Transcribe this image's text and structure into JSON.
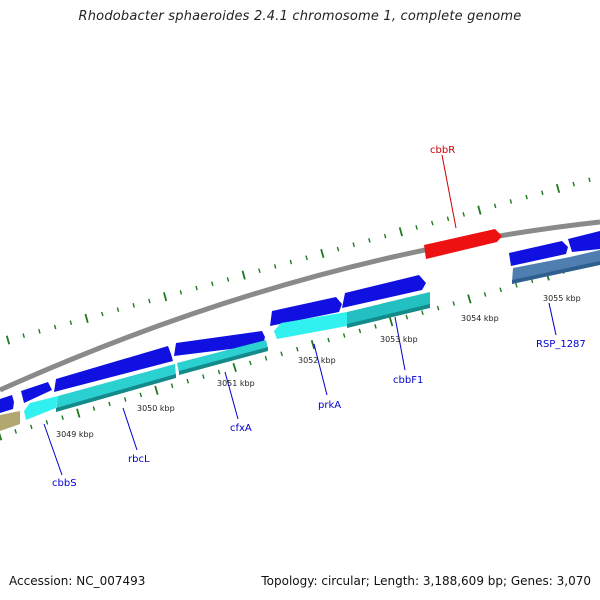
{
  "title": "Rhodobacter sphaeroides 2.4.1 chromosome 1, complete genome",
  "footer": {
    "accession": "Accession: NC_007493",
    "stats": "Topology: circular; Length: 3,188,609 bp; Genes: 3,070"
  },
  "colors": {
    "backbone": "#8a8a8a",
    "tick": "#1f7a1f",
    "gene_label": "#0000cc",
    "highlight_label": "#cc0000",
    "forward_gene": "#1010e0",
    "reverse_gene": "#30f0f0",
    "reverse_gene_dark": "#1ab0b0",
    "selected_gene": "#ee1111",
    "other_gene": "#4f7fb0",
    "olive_gene": "#b0a870"
  },
  "position_labels": [
    "3049 kbp",
    "3050 kbp",
    "3051 kbp",
    "3052 kbp",
    "3053 kbp",
    "3054 kbp",
    "3055 kbp"
  ],
  "gene_labels": [
    {
      "name": "cbbS",
      "color": "blue"
    },
    {
      "name": "rbcL",
      "color": "blue"
    },
    {
      "name": "cfxA",
      "color": "blue"
    },
    {
      "name": "prkA",
      "color": "blue"
    },
    {
      "name": "cbbF1",
      "color": "blue"
    },
    {
      "name": "RSP_1287",
      "color": "blue"
    },
    {
      "name": "cbbR",
      "color": "red"
    }
  ]
}
